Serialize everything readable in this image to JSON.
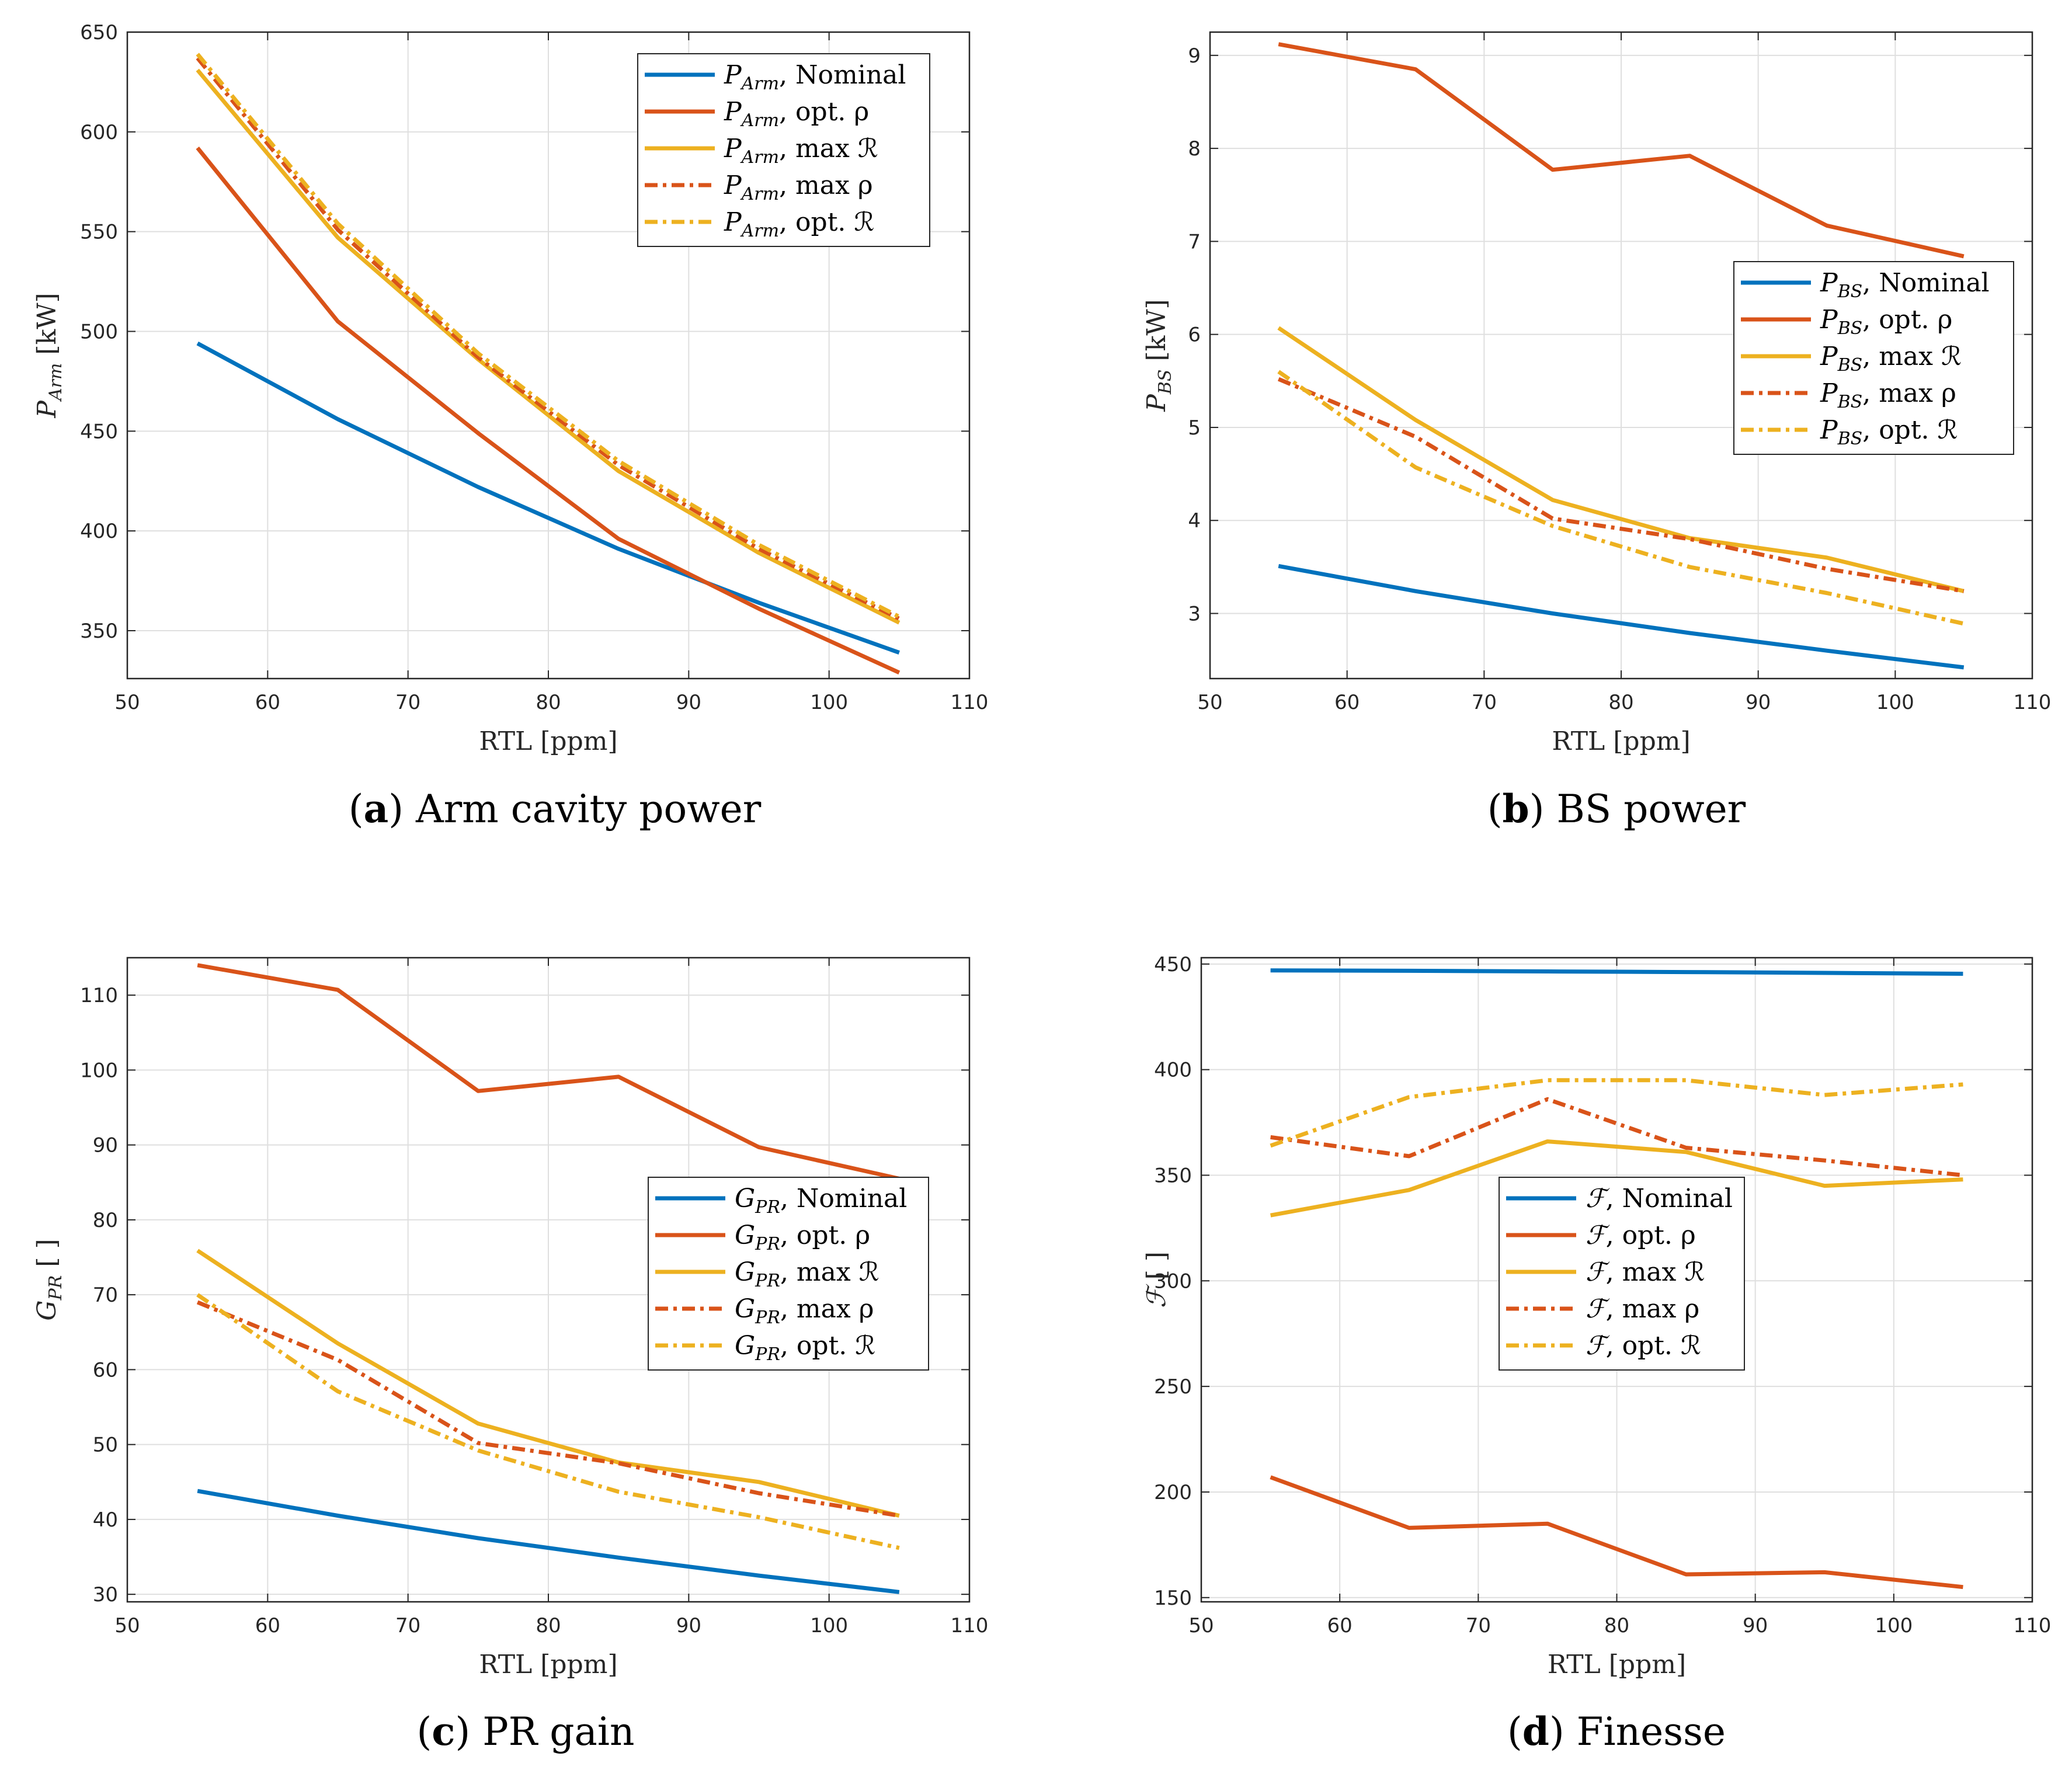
{
  "colors": {
    "blue": "#0072BD",
    "orange": "#D95319",
    "yellow": "#EDB120"
  },
  "chart_data": [
    {
      "type": "line",
      "caption_letter": "(a)",
      "caption_text": "Arm cavity power",
      "xlabel": "RTL [ppm]",
      "ylabel_main": "P",
      "ylabel_sub": "Arm",
      "ylabel_unit": " [kW]",
      "xlim": [
        50,
        110
      ],
      "ylim": [
        326,
        650
      ],
      "xticks": [
        50,
        60,
        70,
        80,
        90,
        100,
        110
      ],
      "yticks": [
        350,
        400,
        450,
        500,
        550,
        600,
        650
      ],
      "x": [
        55,
        65,
        75,
        85,
        95,
        105
      ],
      "legend_position": "top-right",
      "series": [
        {
          "sym": "P",
          "sub": "Arm",
          "suffix": ", Nominal",
          "color": "#0072BD",
          "dash": "solid",
          "values": [
            494,
            456,
            422,
            391,
            364,
            339
          ]
        },
        {
          "sym": "P",
          "sub": "Arm",
          "suffix": ", opt. ρ",
          "color": "#D95319",
          "dash": "solid",
          "values": [
            592,
            505,
            449,
            396,
            361,
            329
          ]
        },
        {
          "sym": "P",
          "sub": "Arm",
          "suffix": ", max ℛ",
          "color": "#EDB120",
          "dash": "solid",
          "values": [
            631,
            547,
            486,
            430,
            389,
            354
          ]
        },
        {
          "sym": "P",
          "sub": "Arm",
          "suffix": ", max ρ",
          "color": "#D95319",
          "dash": "dashdot",
          "values": [
            637,
            551,
            487,
            433,
            391,
            356
          ]
        },
        {
          "sym": "P",
          "sub": "Arm",
          "suffix": ", opt. ℛ",
          "color": "#EDB120",
          "dash": "dashdot",
          "values": [
            639,
            554,
            489,
            435,
            393,
            357
          ]
        }
      ]
    },
    {
      "type": "line",
      "caption_letter": "(b)",
      "caption_text": "BS power",
      "xlabel": "RTL [ppm]",
      "ylabel_main": "P",
      "ylabel_sub": "BS",
      "ylabel_unit": " [kW]",
      "xlim": [
        50,
        110
      ],
      "ylim": [
        2.3,
        9.25
      ],
      "xticks": [
        50,
        60,
        70,
        80,
        90,
        100,
        110
      ],
      "yticks": [
        3,
        4,
        5,
        6,
        7,
        8,
        9
      ],
      "x": [
        55,
        65,
        75,
        85,
        95,
        105
      ],
      "legend_position": "right",
      "series": [
        {
          "sym": "P",
          "sub": "BS",
          "suffix": ", Nominal",
          "color": "#0072BD",
          "dash": "solid",
          "values": [
            3.51,
            3.24,
            3.0,
            2.79,
            2.6,
            2.42
          ]
        },
        {
          "sym": "P",
          "sub": "BS",
          "suffix": ", opt. ρ",
          "color": "#D95319",
          "dash": "solid",
          "values": [
            9.12,
            8.85,
            7.77,
            7.92,
            7.17,
            6.84
          ]
        },
        {
          "sym": "P",
          "sub": "BS",
          "suffix": ", max ℛ",
          "color": "#EDB120",
          "dash": "solid",
          "values": [
            6.07,
            5.08,
            4.22,
            3.81,
            3.6,
            3.24
          ]
        },
        {
          "sym": "P",
          "sub": "BS",
          "suffix": ", max ρ",
          "color": "#D95319",
          "dash": "dashdot",
          "values": [
            5.52,
            4.9,
            4.02,
            3.8,
            3.48,
            3.24
          ]
        },
        {
          "sym": "P",
          "sub": "BS",
          "suffix": ", opt. ℛ",
          "color": "#EDB120",
          "dash": "dashdot",
          "values": [
            5.6,
            4.57,
            3.94,
            3.5,
            3.22,
            2.89
          ]
        }
      ]
    },
    {
      "type": "line",
      "caption_letter": "(c)",
      "caption_text": "PR gain",
      "xlabel": "RTL [ppm]",
      "ylabel_main": "G",
      "ylabel_sub": "PR",
      "ylabel_unit": " [ ]",
      "xlim": [
        50,
        110
      ],
      "ylim": [
        29,
        115
      ],
      "xticks": [
        50,
        60,
        70,
        80,
        90,
        100,
        110
      ],
      "yticks": [
        30,
        40,
        50,
        60,
        70,
        80,
        90,
        100,
        110
      ],
      "x": [
        55,
        65,
        75,
        85,
        95,
        105
      ],
      "legend_position": "right",
      "series": [
        {
          "sym": "G",
          "sub": "PR",
          "suffix": ", Nominal",
          "color": "#0072BD",
          "dash": "solid",
          "values": [
            43.8,
            40.5,
            37.5,
            34.9,
            32.5,
            30.3
          ]
        },
        {
          "sym": "G",
          "sub": "PR",
          "suffix": ", opt. ρ",
          "color": "#D95319",
          "dash": "solid",
          "values": [
            114,
            110.7,
            97.2,
            99.1,
            89.7,
            85.5
          ]
        },
        {
          "sym": "G",
          "sub": "PR",
          "suffix": ", max ℛ",
          "color": "#EDB120",
          "dash": "solid",
          "values": [
            75.9,
            63.5,
            52.8,
            47.6,
            45,
            40.5
          ]
        },
        {
          "sym": "G",
          "sub": "PR",
          "suffix": ", max ρ",
          "color": "#D95319",
          "dash": "dashdot",
          "values": [
            69,
            61.3,
            50.2,
            47.5,
            43.5,
            40.5
          ]
        },
        {
          "sym": "G",
          "sub": "PR",
          "suffix": ", opt. ℛ",
          "color": "#EDB120",
          "dash": "dashdot",
          "values": [
            70,
            57.1,
            49.2,
            43.7,
            40.3,
            36.2
          ]
        }
      ]
    },
    {
      "type": "line",
      "caption_letter": "(d)",
      "caption_text": "Finesse",
      "xlabel": "RTL [ppm]",
      "ylabel_main": "ℱ",
      "ylabel_sub": "",
      "ylabel_unit": " [ ]",
      "xlim": [
        50,
        110
      ],
      "ylim": [
        148,
        453
      ],
      "xticks": [
        50,
        60,
        70,
        80,
        90,
        100,
        110
      ],
      "yticks": [
        150,
        200,
        250,
        300,
        350,
        400,
        450
      ],
      "x": [
        55,
        65,
        75,
        85,
        95,
        105
      ],
      "legend_position": "center-right",
      "series": [
        {
          "sym": "ℱ",
          "sub": "",
          "suffix": ", Nominal",
          "color": "#0072BD",
          "dash": "solid",
          "values": [
            447,
            446.8,
            446.5,
            446.2,
            445.8,
            445.4
          ]
        },
        {
          "sym": "ℱ",
          "sub": "",
          "suffix": ", opt. ρ",
          "color": "#D95319",
          "dash": "solid",
          "values": [
            207,
            183,
            185,
            161,
            162,
            155
          ]
        },
        {
          "sym": "ℱ",
          "sub": "",
          "suffix": ", max ℛ",
          "color": "#EDB120",
          "dash": "solid",
          "values": [
            331,
            343,
            366,
            361,
            345,
            348
          ]
        },
        {
          "sym": "ℱ",
          "sub": "",
          "suffix": ", max ρ",
          "color": "#D95319",
          "dash": "dashdot",
          "values": [
            368,
            359,
            386,
            363,
            357,
            350
          ]
        },
        {
          "sym": "ℱ",
          "sub": "",
          "suffix": ", opt. ℛ",
          "color": "#EDB120",
          "dash": "dashdot",
          "values": [
            364,
            387,
            395,
            395,
            388,
            393
          ]
        }
      ]
    }
  ]
}
